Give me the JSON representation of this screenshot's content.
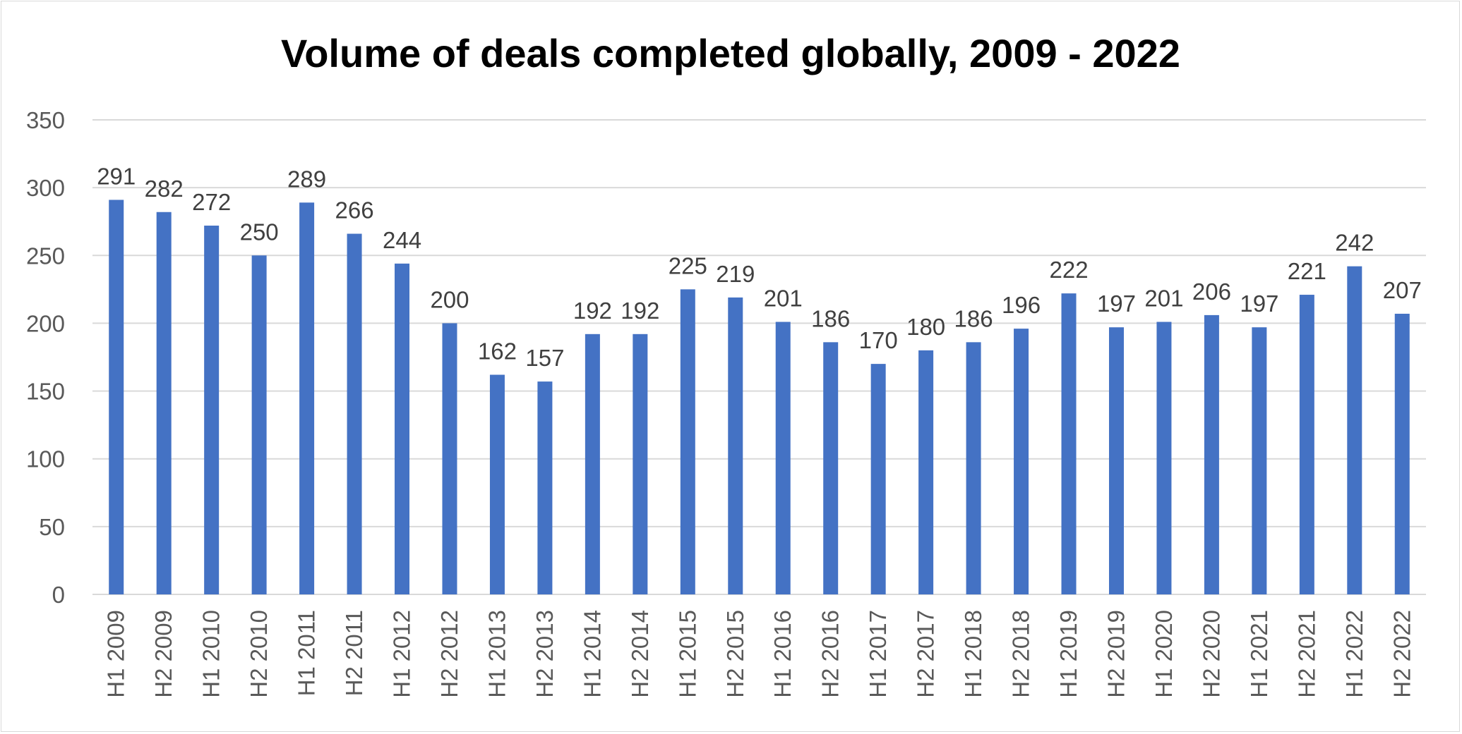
{
  "chart_data": {
    "type": "bar",
    "title": "Volume of deals completed globally, 2009 - 2022",
    "xlabel": "",
    "ylabel": "",
    "ylim": [
      0,
      350
    ],
    "yticks": [
      0,
      50,
      100,
      150,
      200,
      250,
      300,
      350
    ],
    "grid": true,
    "legend": "none",
    "bar_color": "#4472C4",
    "categories": [
      "H1 2009",
      "H2 2009",
      "H1 2010",
      "H2 2010",
      "H1 2011",
      "H2 2011",
      "H1 2012",
      "H2 2012",
      "H1 2013",
      "H2 2013",
      "H1 2014",
      "H2 2014",
      "H1 2015",
      "H2 2015",
      "H1 2016",
      "H2 2016",
      "H1 2017",
      "H2 2017",
      "H1 2018",
      "H2 2018",
      "H1 2019",
      "H2 2019",
      "H1 2020",
      "H2 2020",
      "H1 2021",
      "H2 2021",
      "H1 2022",
      "H2 2022"
    ],
    "values": [
      291,
      282,
      272,
      250,
      289,
      266,
      244,
      200,
      162,
      157,
      192,
      192,
      225,
      219,
      201,
      186,
      170,
      180,
      186,
      196,
      222,
      197,
      201,
      206,
      197,
      221,
      242,
      207
    ]
  }
}
